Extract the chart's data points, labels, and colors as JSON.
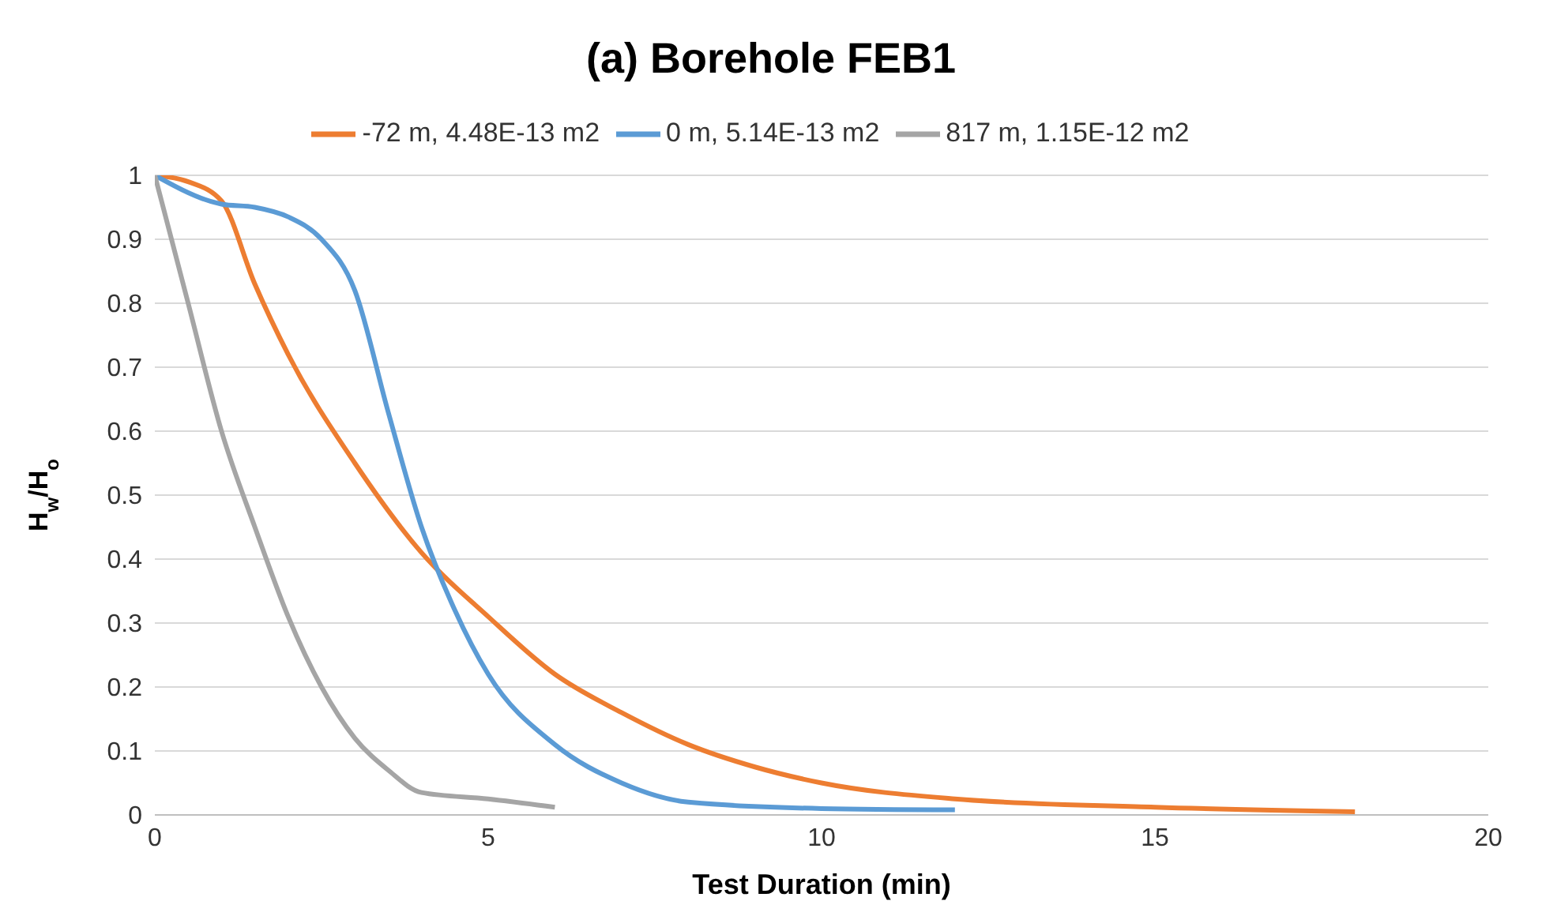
{
  "chart_data": {
    "type": "line",
    "title": "(a) Borehole FEB1",
    "xlabel": "Test Duration (min)",
    "ylabel": "H$_{w}$/H$_{o}$",
    "xlim": [
      0,
      20
    ],
    "xticks": [
      0,
      5,
      10,
      15,
      20
    ],
    "ylim": [
      0,
      1
    ],
    "yticks": [
      0,
      0.1,
      0.2,
      0.3,
      0.4,
      0.5,
      0.6,
      0.7,
      0.8,
      0.9,
      1
    ],
    "grid": "y",
    "legend": "top",
    "marker": "none",
    "series": [
      {
        "name": "-72 m, 4.48E-13 m2",
        "color": "#ed7d31",
        "x": [
          0,
          0.5,
          1,
          1.5,
          2,
          3,
          4,
          5,
          6,
          7,
          8,
          9,
          10,
          12,
          15,
          18
        ],
        "values": [
          1,
          0.99,
          0.96,
          0.83,
          0.72,
          0.55,
          0.41,
          0.31,
          0.22,
          0.16,
          0.11,
          0.075,
          0.05,
          0.025,
          0.012,
          0.005
        ]
      },
      {
        "name": "0 m, 5.14E-13 m2",
        "color": "#5b9bd5",
        "x": [
          0,
          1,
          1.5,
          2,
          2.5,
          3,
          3.5,
          4,
          4.5,
          5,
          6,
          7,
          8,
          10,
          12
        ],
        "values": [
          1,
          0.955,
          0.95,
          0.935,
          0.9,
          0.82,
          0.63,
          0.45,
          0.32,
          0.22,
          0.11,
          0.05,
          0.02,
          0.01,
          0.008
        ]
      },
      {
        "name": "817 m, 1.15E-12 m2",
        "color": "#a5a5a5",
        "x": [
          0,
          0.5,
          1,
          1.5,
          2,
          2.5,
          3,
          3.5,
          4,
          5,
          6
        ],
        "values": [
          1,
          0.8,
          0.6,
          0.45,
          0.31,
          0.2,
          0.12,
          0.07,
          0.035,
          0.025,
          0.012
        ]
      }
    ]
  }
}
